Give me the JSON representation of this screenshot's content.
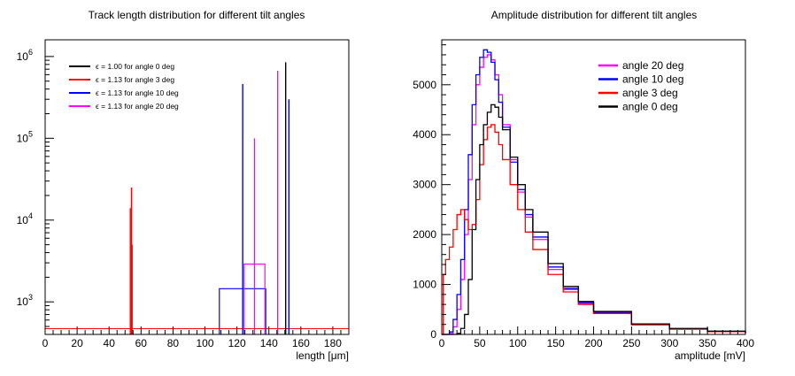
{
  "chart_data": [
    {
      "type": "line",
      "title": "Track length distribution for different tilt angles",
      "xlabel": "length [μm]",
      "ylabel": "",
      "xlim": [
        0,
        190
      ],
      "ylim": [
        400,
        1600000
      ],
      "yscale": "log",
      "xticks": [
        0,
        20,
        40,
        60,
        80,
        100,
        120,
        140,
        160,
        180
      ],
      "yticks": [
        {
          "value": 1000,
          "label": "10",
          "exp": "3"
        },
        {
          "value": 10000,
          "label": "10",
          "exp": "4"
        },
        {
          "value": 100000,
          "label": "10",
          "exp": "5"
        },
        {
          "value": 1000000,
          "label": "10",
          "exp": "6"
        }
      ],
      "legend_position": "top-left",
      "series": [
        {
          "name": "ϵ = 1.00 for angle 0 deg",
          "color": "#000000",
          "spikes": [
            [
              150.5,
              850000
            ]
          ],
          "boxes": []
        },
        {
          "name": "ϵ = 1.13 for angle 3 deg",
          "color": "#ff0000",
          "spikes": [
            [
              53.3,
              14000
            ],
            [
              54.0,
              25000
            ],
            [
              54.4,
              5000
            ]
          ],
          "boxes": []
        },
        {
          "name": "ϵ = 1.13 for angle 10 deg",
          "color": "#0000ff",
          "spikes": [
            [
              123.6,
              460000
            ],
            [
              152.5,
              300000
            ]
          ],
          "boxes": [
            {
              "x0": 109,
              "x1": 138,
              "level": 1450
            }
          ]
        },
        {
          "name": "ϵ = 1.13 for angle 20 deg",
          "color": "#ff00ff",
          "spikes": [
            [
              131.0,
              100000
            ],
            [
              145.5,
              670000
            ]
          ],
          "boxes": [
            {
              "x0": 124.5,
              "x1": 137.5,
              "level": 2900
            }
          ]
        }
      ]
    },
    {
      "type": "line",
      "title": "Amplitude distribution for different tilt angles",
      "xlabel": "amplitude [mV]",
      "ylabel": "",
      "xlim": [
        0,
        400
      ],
      "ylim": [
        0,
        5900
      ],
      "xticks": [
        0,
        50,
        100,
        150,
        200,
        250,
        300,
        350,
        400
      ],
      "yticks": [
        0,
        1000,
        2000,
        3000,
        4000,
        5000
      ],
      "legend_position": "top-right",
      "series": [
        {
          "name": "angle 20 deg",
          "color": "#ff00ff",
          "x": [
            0,
            5,
            10,
            15,
            20,
            25,
            30,
            35,
            40,
            45,
            50,
            55,
            60,
            65,
            70,
            75,
            80,
            90,
            100,
            110,
            120,
            140,
            160,
            180,
            200,
            250,
            300,
            350,
            400
          ],
          "y": [
            0,
            0,
            20,
            150,
            500,
            1100,
            2000,
            3100,
            4200,
            5000,
            5350,
            5550,
            5600,
            5500,
            5200,
            4800,
            4200,
            3500,
            2850,
            2350,
            1900,
            1300,
            900,
            620,
            430,
            200,
            110,
            60,
            30
          ]
        },
        {
          "name": "angle 10 deg",
          "color": "#0000ff",
          "x": [
            0,
            5,
            10,
            15,
            20,
            25,
            30,
            35,
            40,
            45,
            50,
            55,
            60,
            65,
            70,
            75,
            80,
            90,
            100,
            110,
            120,
            140,
            160,
            180,
            200,
            250,
            300,
            350,
            400
          ],
          "y": [
            0,
            0,
            50,
            300,
            800,
            1500,
            2500,
            3600,
            4600,
            5200,
            5550,
            5700,
            5650,
            5450,
            5100,
            4650,
            4150,
            3450,
            2900,
            2400,
            1950,
            1350,
            920,
            640,
            440,
            200,
            110,
            60,
            30
          ]
        },
        {
          "name": "angle 3 deg",
          "color": "#ff0000",
          "x": [
            0,
            2,
            5,
            10,
            15,
            20,
            25,
            30,
            35,
            40,
            45,
            50,
            55,
            60,
            65,
            70,
            75,
            80,
            90,
            100,
            110,
            120,
            140,
            160,
            180,
            200,
            250,
            300,
            350,
            400
          ],
          "y": [
            0,
            1200,
            1500,
            1750,
            2100,
            2400,
            2500,
            2300,
            2100,
            2200,
            2700,
            3400,
            3900,
            4150,
            4200,
            4050,
            3800,
            3500,
            3000,
            2500,
            2050,
            1700,
            1200,
            850,
            600,
            420,
            190,
            105,
            55,
            25
          ]
        },
        {
          "name": "angle 0 deg",
          "color": "#000000",
          "x": [
            0,
            5,
            10,
            15,
            20,
            25,
            30,
            35,
            40,
            45,
            50,
            55,
            60,
            65,
            70,
            75,
            80,
            90,
            100,
            110,
            120,
            140,
            160,
            180,
            200,
            250,
            300,
            350,
            400
          ],
          "y": [
            0,
            0,
            0,
            0,
            20,
            120,
            400,
            1100,
            2100,
            3100,
            3800,
            4200,
            4450,
            4600,
            4550,
            4350,
            4100,
            3550,
            3000,
            2500,
            2050,
            1420,
            960,
            660,
            460,
            210,
            120,
            65,
            35
          ]
        }
      ]
    }
  ]
}
